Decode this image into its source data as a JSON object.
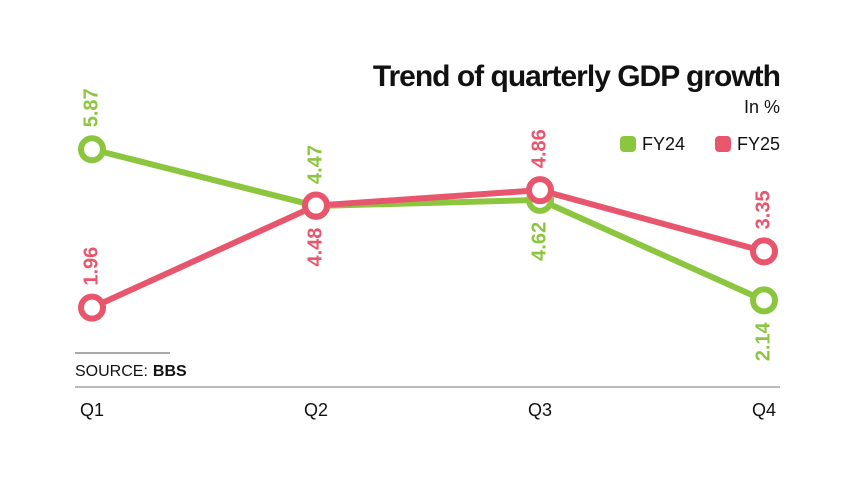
{
  "chart_data": {
    "type": "line",
    "title": "Trend of quarterly GDP growth",
    "subtitle": "In %",
    "categories": [
      "Q1",
      "Q2",
      "Q3",
      "Q4"
    ],
    "series": [
      {
        "name": "FY24",
        "color": "#8cc63f",
        "values": [
          5.87,
          4.47,
          4.62,
          2.14
        ]
      },
      {
        "name": "FY25",
        "color": "#e8566e",
        "values": [
          1.96,
          4.48,
          4.86,
          3.35
        ]
      }
    ],
    "ylim": [
      0,
      8
    ],
    "source_label": "SOURCE:",
    "source": "BBS"
  }
}
